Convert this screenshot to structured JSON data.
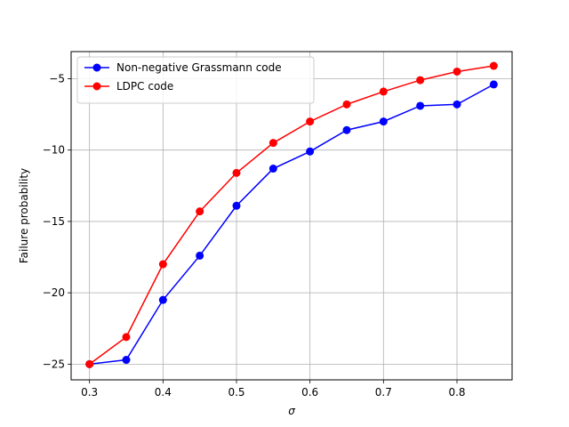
{
  "chart_data": {
    "type": "line",
    "title": "",
    "xlabel": "σ",
    "ylabel": "Failure probability",
    "xlim": [
      0.275,
      0.875
    ],
    "ylim": [
      -26.1,
      -3.1
    ],
    "grid": true,
    "legend_position": "top-left",
    "x_ticks": [
      {
        "value": 0.3,
        "label": "0.3"
      },
      {
        "value": 0.4,
        "label": "0.4"
      },
      {
        "value": 0.5,
        "label": "0.5"
      },
      {
        "value": 0.6,
        "label": "0.6"
      },
      {
        "value": 0.7,
        "label": "0.7"
      },
      {
        "value": 0.8,
        "label": "0.8"
      }
    ],
    "y_ticks": [
      {
        "value": -25,
        "label": "−25"
      },
      {
        "value": -20,
        "label": "−20"
      },
      {
        "value": -15,
        "label": "−15"
      },
      {
        "value": -10,
        "label": "−10"
      },
      {
        "value": -5,
        "label": "−5"
      }
    ],
    "x": [
      0.3,
      0.35,
      0.4,
      0.45,
      0.5,
      0.55,
      0.6,
      0.65,
      0.7,
      0.75,
      0.8,
      0.85
    ],
    "series": [
      {
        "name": "Non-negative Grassmann code",
        "color": "#0000ff",
        "values": [
          -25.0,
          -24.7,
          -20.5,
          -17.4,
          -13.9,
          -11.3,
          -10.1,
          -8.6,
          -8.0,
          -6.9,
          -6.8,
          -5.4
        ]
      },
      {
        "name": "LDPC code",
        "color": "#ff0000",
        "values": [
          -25.0,
          -23.1,
          -18.0,
          -14.3,
          -11.6,
          -9.5,
          -8.0,
          -6.8,
          -5.9,
          -5.1,
          -4.5,
          -4.1
        ]
      }
    ]
  }
}
